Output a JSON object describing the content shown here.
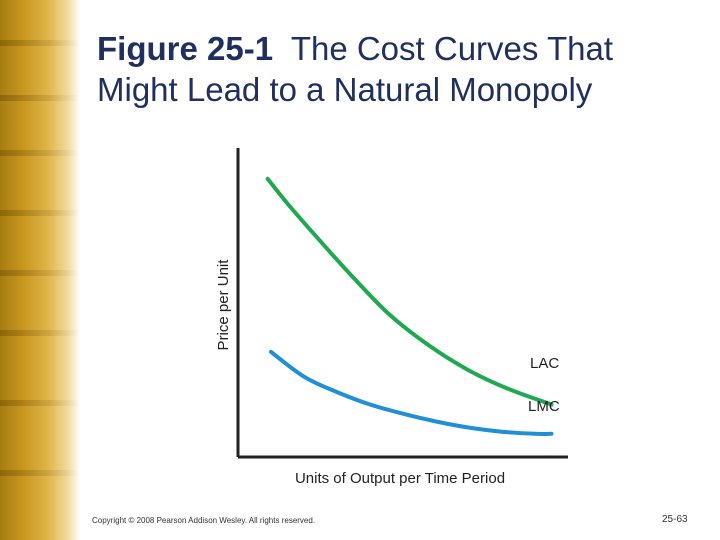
{
  "slide": {
    "figure_number": "Figure 25-1",
    "title": "The Cost Curves That Might Lead to a Natural Monopoly",
    "copyright": "Copyright © 2008 Pearson Addison Wesley. All rights reserved.",
    "page_number": "25-63"
  },
  "colors": {
    "title": "#1f3060",
    "lac": "#1fa84f",
    "lmc": "#1f8fd6",
    "axis": "#222222"
  },
  "chart_data": {
    "type": "line",
    "title": "",
    "xlabel": "Units of Output per Time Period",
    "ylabel": "Price per Unit",
    "xlim": [
      0,
      10
    ],
    "ylim": [
      0,
      10
    ],
    "grid": false,
    "series": [
      {
        "name": "LAC",
        "color": "#1fa84f",
        "points": [
          [
            0.9,
            9.0
          ],
          [
            1.5,
            8.2
          ],
          [
            2.4,
            7.1
          ],
          [
            3.5,
            5.8
          ],
          [
            4.6,
            4.6
          ],
          [
            5.8,
            3.6
          ],
          [
            7.0,
            2.8
          ],
          [
            8.2,
            2.2
          ],
          [
            9.5,
            1.7
          ]
        ]
      },
      {
        "name": "LMC",
        "color": "#1f8fd6",
        "points": [
          [
            1.0,
            3.4
          ],
          [
            2.0,
            2.6
          ],
          [
            3.0,
            2.1
          ],
          [
            4.0,
            1.7
          ],
          [
            5.0,
            1.4
          ],
          [
            6.0,
            1.15
          ],
          [
            7.0,
            0.95
          ],
          [
            8.0,
            0.82
          ],
          [
            9.0,
            0.75
          ],
          [
            9.5,
            0.75
          ]
        ]
      }
    ]
  }
}
